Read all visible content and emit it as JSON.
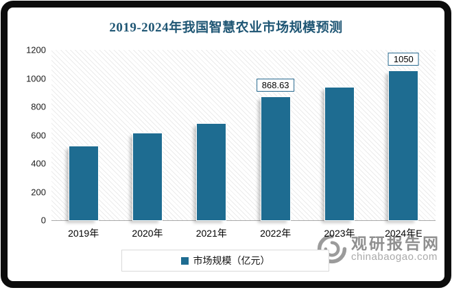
{
  "title": "2019-2024年我国智慧农业市场规模预测",
  "colors": {
    "bar": "#1E6C91",
    "title": "#1F5674",
    "label_box_border": "#26688E",
    "watermark_gray": "#8f8f8f"
  },
  "legend": {
    "label": "市场规模（亿元）"
  },
  "watermark": {
    "name": "观研报告网",
    "domain": "chinabaogao.com"
  },
  "chart_data": {
    "type": "bar",
    "title": "2019-2024年我国智慧农业市场规模预测",
    "categories": [
      "2019年",
      "2020年",
      "2021年",
      "2022年",
      "2023年",
      "2024年E"
    ],
    "values": [
      520,
      610,
      680,
      868.63,
      935,
      1050
    ],
    "point_labels": [
      null,
      null,
      null,
      "868.63",
      null,
      "1050"
    ],
    "series_name": "市场规模（亿元）",
    "ylabel": "市场规模（亿元）",
    "xlabel": "",
    "ylim": [
      0,
      1200
    ],
    "yticks": [
      0,
      200,
      400,
      600,
      800,
      1000,
      1200
    ],
    "grid": false,
    "legend_position": "bottom",
    "bar_color": "#1E6C91"
  }
}
